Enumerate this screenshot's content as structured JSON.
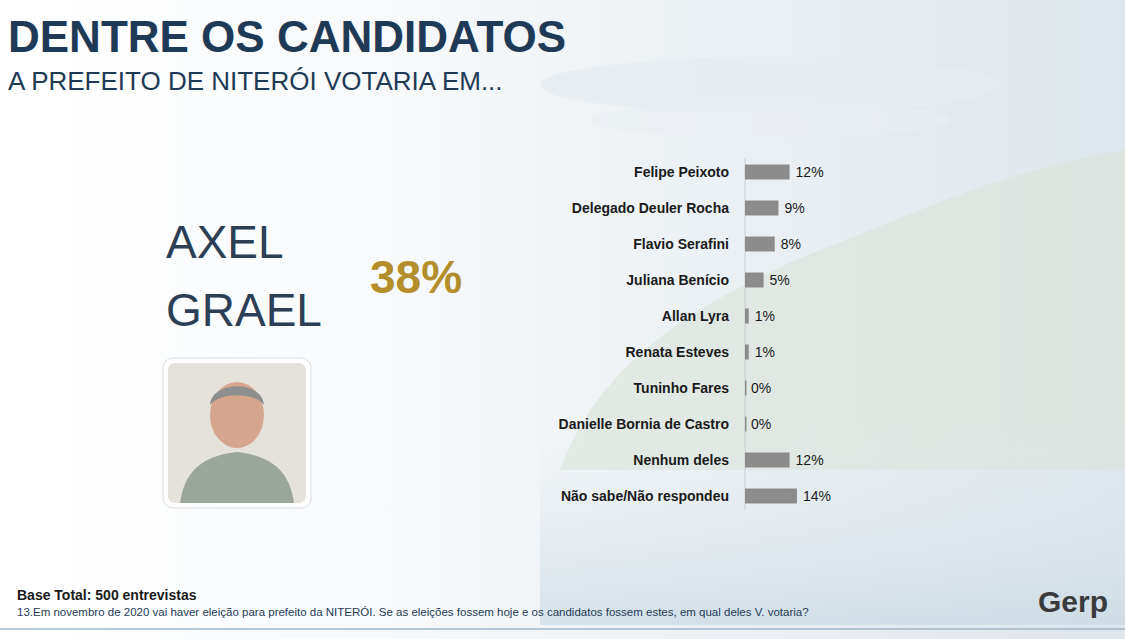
{
  "chart_data": {
    "type": "bar",
    "orientation": "horizontal",
    "title": "DENTRE OS CANDIDATOS",
    "subtitle": "A PREFEITO DE NITERÓI VOTARIA EM...",
    "highlight": {
      "label": "AXEL GRAEL",
      "value": 38,
      "value_label": "38%"
    },
    "categories": [
      "Felipe Peixoto",
      "Delegado Deuler Rocha",
      "Flavio Serafini",
      "Juliana Benício",
      "Allan Lyra",
      "Renata Esteves",
      "Tuninho Fares",
      "Danielle Bornia de Castro",
      "Nenhum deles",
      "Não sabe/Não respondeu"
    ],
    "values": [
      12,
      9,
      8,
      5,
      1,
      1,
      0,
      0,
      12,
      14
    ],
    "value_labels": [
      "12%",
      "9%",
      "8%",
      "5%",
      "1%",
      "1%",
      "0%",
      "0%",
      "12%",
      "14%"
    ],
    "color": "#8c8c8c",
    "xlim": [
      0,
      14
    ],
    "tick_labels": false,
    "data_labels": true,
    "grid": false,
    "footnote": "Base Total: 500 entrevistas",
    "question": "13.Em novembro de 2020 vai haver eleição para prefeito da NITERÓI. Se as eleições fossem hoje e os candidatos fossem estes, em qual deles V. votaria?",
    "logo": "Gerp"
  }
}
